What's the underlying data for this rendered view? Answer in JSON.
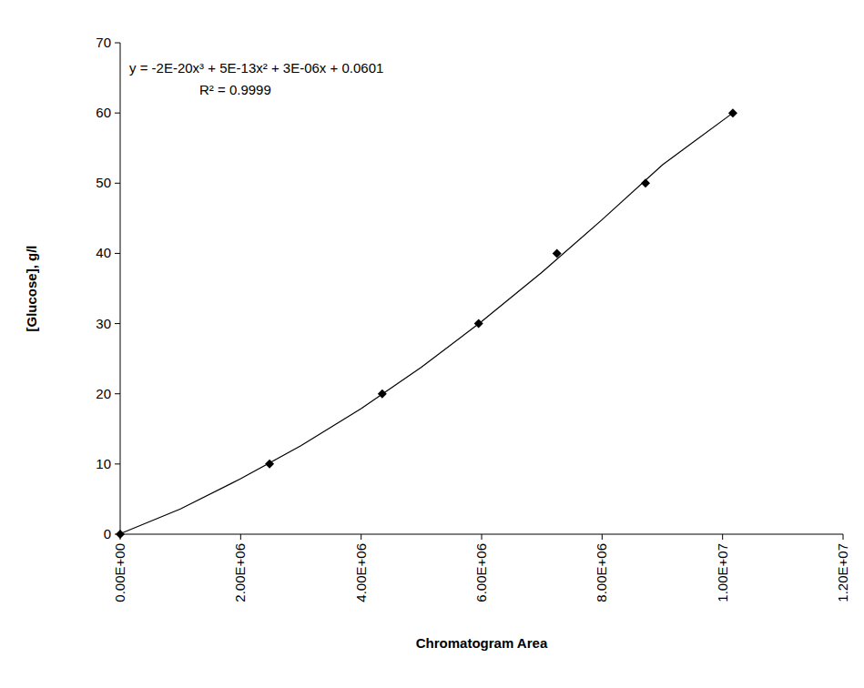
{
  "chart_data": {
    "type": "scatter",
    "x_label": "Chromatogram Area",
    "y_label": "[Glucose], g/l",
    "annotations": [
      "y = -2E-20x³ + 5E-13x² + 3E-06x + 0.0601",
      "R² = 0.9999"
    ],
    "xlim": [
      0,
      12000000
    ],
    "ylim": [
      0,
      70
    ],
    "xticks": [
      {
        "value": 0,
        "label": "0.00E+00"
      },
      {
        "value": 2000000,
        "label": "2.00E+06"
      },
      {
        "value": 4000000,
        "label": "4.00E+06"
      },
      {
        "value": 6000000,
        "label": "6.00E+06"
      },
      {
        "value": 8000000,
        "label": "8.00E+06"
      },
      {
        "value": 10000000,
        "label": "1.00E+07"
      },
      {
        "value": 12000000,
        "label": "1.20E+07"
      }
    ],
    "yticks": [
      0,
      10,
      20,
      30,
      40,
      50,
      60,
      70
    ],
    "grid": false,
    "series": [
      {
        "type": "scatter",
        "marker": "diamond",
        "color": "#000000",
        "x": [
          0,
          2480000,
          4350000,
          5950000,
          7250000,
          8720000,
          10170000
        ],
        "values": [
          0,
          10,
          20,
          30,
          40,
          50,
          60
        ]
      },
      {
        "type": "line",
        "line_style": "solid",
        "color": "#000000",
        "x": [
          0,
          1000000,
          2000000,
          3000000,
          4000000,
          5000000,
          6000000,
          7000000,
          8000000,
          9000000,
          10170000
        ],
        "values": [
          0.06,
          3.6,
          7.9,
          12.6,
          17.9,
          23.8,
          30.3,
          37.3,
          44.8,
          52.6,
          60
        ]
      }
    ]
  }
}
